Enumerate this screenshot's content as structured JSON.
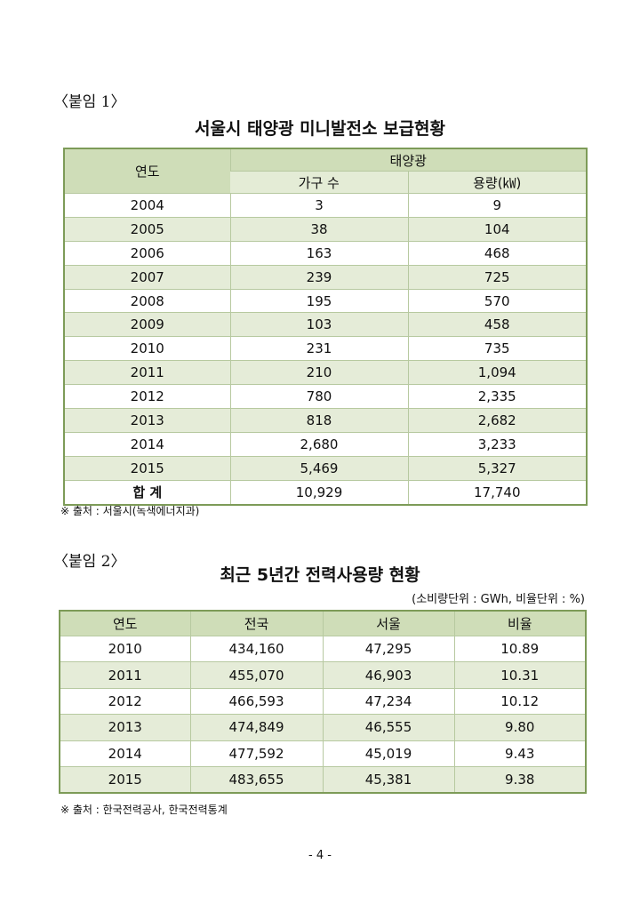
{
  "attach1": {
    "label": "〈붙임 1〉",
    "title": "서울시 태양광 미니발전소 보급현황",
    "header_year": "연도",
    "header_group": "태양광",
    "header_households": "가구 수",
    "header_capacity": "용량(㎾)",
    "rows": [
      {
        "year": "2004",
        "households": "3",
        "capacity": "9"
      },
      {
        "year": "2005",
        "households": "38",
        "capacity": "104"
      },
      {
        "year": "2006",
        "households": "163",
        "capacity": "468"
      },
      {
        "year": "2007",
        "households": "239",
        "capacity": "725"
      },
      {
        "year": "2008",
        "households": "195",
        "capacity": "570"
      },
      {
        "year": "2009",
        "households": "103",
        "capacity": "458"
      },
      {
        "year": "2010",
        "households": "231",
        "capacity": "735"
      },
      {
        "year": "2011",
        "households": "210",
        "capacity": "1,094"
      },
      {
        "year": "2012",
        "households": "780",
        "capacity": "2,335"
      },
      {
        "year": "2013",
        "households": "818",
        "capacity": "2,682"
      },
      {
        "year": "2014",
        "households": "2,680",
        "capacity": "3,233"
      },
      {
        "year": "2015",
        "households": "5,469",
        "capacity": "5,327"
      }
    ],
    "total": {
      "label": "합 계",
      "households": "10,929",
      "capacity": "17,740"
    },
    "source": "※ 출처 : 서울시(녹색에너지과)"
  },
  "attach2": {
    "label": "〈붙임 2〉",
    "title": "최근 5년간 전력사용량 현황",
    "unit_note": "(소비량단위 : GWh, 비율단위 : %)",
    "headers": [
      "연도",
      "전국",
      "서울",
      "비율"
    ],
    "rows": [
      [
        "2010",
        "434,160",
        "47,295",
        "10.89"
      ],
      [
        "2011",
        "455,070",
        "46,903",
        "10.31"
      ],
      [
        "2012",
        "466,593",
        "47,234",
        "10.12"
      ],
      [
        "2013",
        "474,849",
        "46,555",
        "9.80"
      ],
      [
        "2014",
        "477,592",
        "45,019",
        "9.43"
      ],
      [
        "2015",
        "483,655",
        "45,381",
        "9.38"
      ]
    ],
    "source": "※ 출처 : 한국전력공사, 한국전력통계"
  },
  "page_number": "- 4 -"
}
